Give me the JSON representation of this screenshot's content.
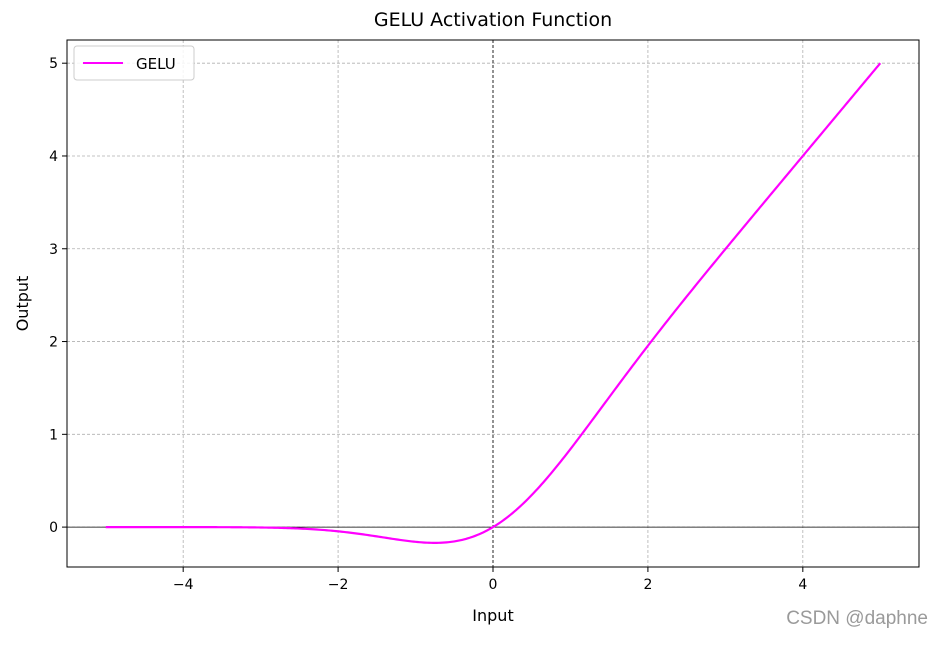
{
  "chart_data": {
    "type": "line",
    "title": "GELU Activation Function",
    "xlabel": "Input",
    "ylabel": "Output",
    "xlim": [
      -5.5,
      5.5
    ],
    "ylim": [
      -0.43,
      5.25
    ],
    "xticks": [
      -4,
      -2,
      0,
      2,
      4
    ],
    "xtick_labels": [
      "−4",
      "−2",
      "0",
      "2",
      "4"
    ],
    "yticks": [
      0,
      1,
      2,
      3,
      4,
      5
    ],
    "ytick_labels": [
      "0",
      "1",
      "2",
      "3",
      "4",
      "5"
    ],
    "grid": true,
    "grid_style": "dashed",
    "zero_lines": true,
    "legend_position": "top-left",
    "series": [
      {
        "name": "GELU",
        "color": "#ff00ff",
        "function": "gelu",
        "x_range": [
          -5,
          5
        ],
        "sample_points": [
          {
            "x": -5,
            "y": 0.0
          },
          {
            "x": -4,
            "y": -0.0001
          },
          {
            "x": -3,
            "y": -0.004
          },
          {
            "x": -2,
            "y": -0.045
          },
          {
            "x": -1.5,
            "y": -0.1
          },
          {
            "x": -1,
            "y": -0.159
          },
          {
            "x": -0.75,
            "y": -0.17
          },
          {
            "x": -0.5,
            "y": -0.154
          },
          {
            "x": 0,
            "y": 0.0
          },
          {
            "x": 0.5,
            "y": 0.346
          },
          {
            "x": 1,
            "y": 0.841
          },
          {
            "x": 2,
            "y": 1.955
          },
          {
            "x": 3,
            "y": 2.996
          },
          {
            "x": 4,
            "y": 4.0
          },
          {
            "x": 5,
            "y": 5.0
          }
        ]
      }
    ]
  },
  "watermark": "CSDN @daphne"
}
